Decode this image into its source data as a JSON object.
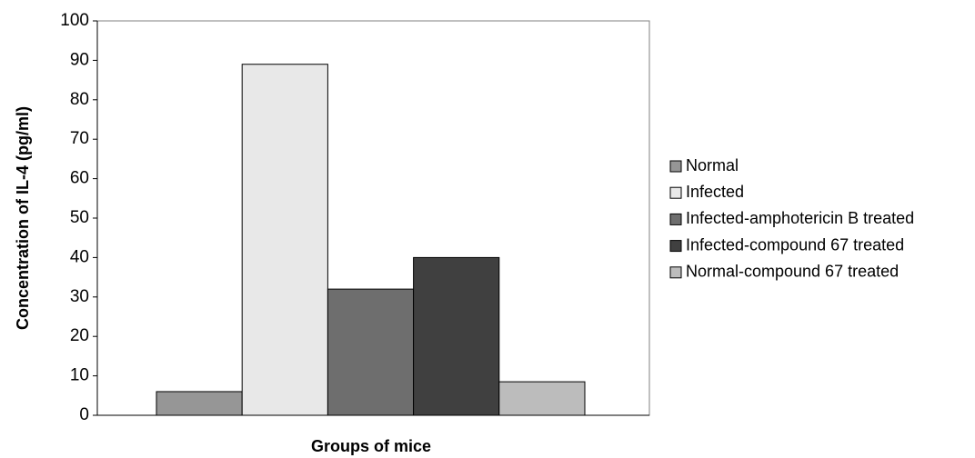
{
  "chart_data": {
    "type": "bar",
    "title": "",
    "xlabel": "Groups of mice",
    "ylabel": "Concentration of IL-4 (pg/ml)",
    "ylim": [
      0,
      100
    ],
    "yticks": [
      "0",
      "10",
      "20",
      "30",
      "40",
      "50",
      "60",
      "70",
      "80",
      "90",
      "100"
    ],
    "grid": false,
    "legend_position": "right",
    "series": [
      {
        "name": "Normal",
        "values": [
          6
        ],
        "color": "#969696"
      },
      {
        "name": "Infected",
        "values": [
          89
        ],
        "color": "#e8e8e8"
      },
      {
        "name": "Infected-amphotericin B treated",
        "values": [
          32
        ],
        "color": "#6e6e6e"
      },
      {
        "name": "Infected-compound 67 treated",
        "values": [
          40
        ],
        "color": "#404040"
      },
      {
        "name": "Normal-compound 67 treated",
        "values": [
          8.5
        ],
        "color": "#bcbcbc"
      }
    ]
  }
}
